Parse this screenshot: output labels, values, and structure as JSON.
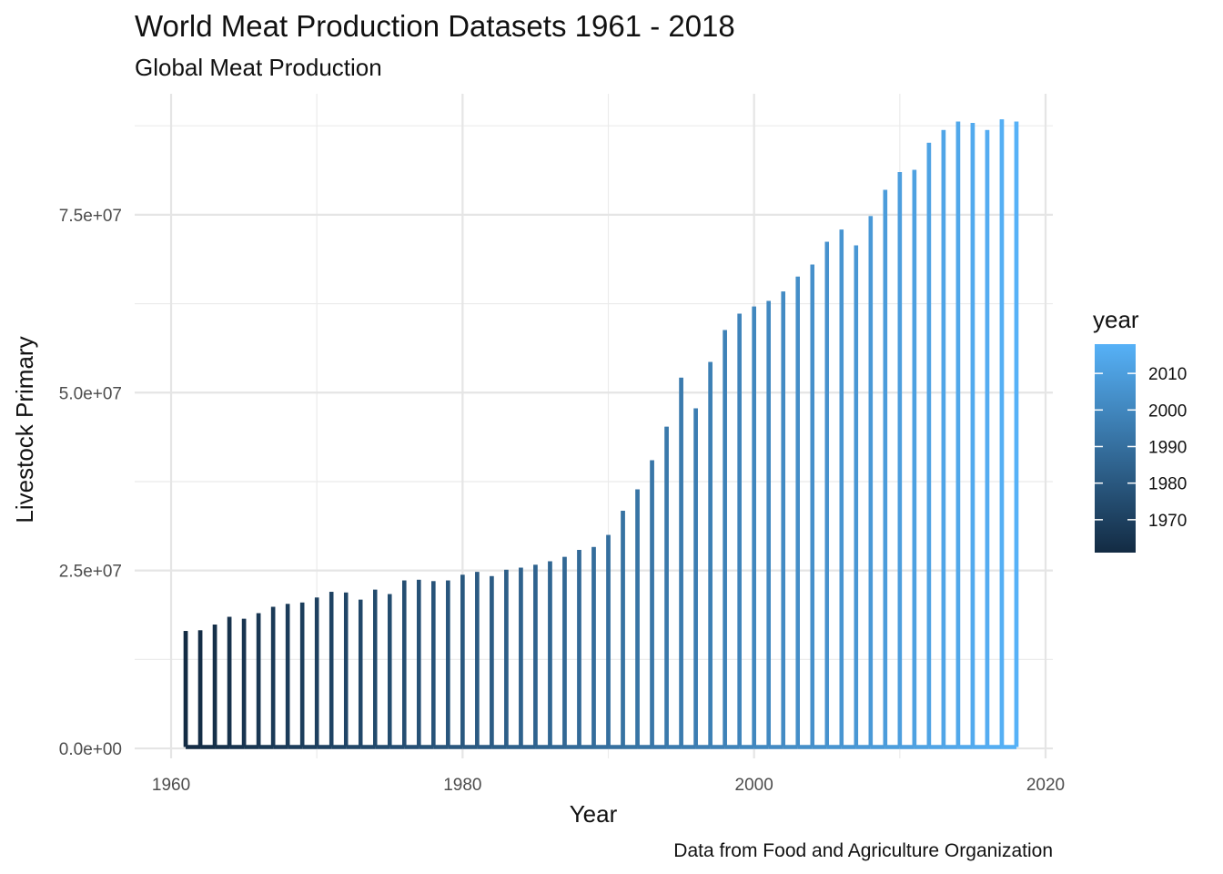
{
  "chart_data": {
    "type": "line",
    "title": "World Meat Production Datasets 1961 - 2018",
    "subtitle": "Global Meat Production",
    "xlabel": "Year",
    "ylabel": "Livestock Primary",
    "caption": "Data from Food and Agriculture Organization",
    "xlim": [
      1957.5,
      2020.5
    ],
    "ylim": [
      -1400000,
      92000000
    ],
    "x_ticks": [
      1960,
      1980,
      2000,
      2020
    ],
    "x_tick_labels": [
      "1960",
      "1980",
      "2000",
      "2020"
    ],
    "y_ticks": [
      0,
      25000000,
      50000000,
      75000000
    ],
    "y_tick_labels": [
      "0.0e+00",
      "2.5e+07",
      "5.0e+07",
      "7.5e+07"
    ],
    "grid": true,
    "color_scale": {
      "variable": "year",
      "low_color": "#132b43",
      "high_color": "#56b1f7",
      "limits": [
        1961,
        2018
      ],
      "legend_ticks": [
        1970,
        1980,
        1990,
        2000,
        2010
      ],
      "legend_tick_labels": [
        "1970",
        "1980",
        "1990",
        "2000",
        "2010"
      ],
      "legend_position": "right"
    },
    "series": [
      {
        "x": [
          1961,
          1962,
          1963,
          1964,
          1965,
          1966,
          1967,
          1968,
          1969,
          1970,
          1971,
          1972,
          1973,
          1974,
          1975,
          1976,
          1977,
          1978,
          1979,
          1980,
          1981,
          1982,
          1983,
          1984,
          1985,
          1986,
          1987,
          1988,
          1989,
          1990,
          1991,
          1992,
          1993,
          1994,
          1995,
          1996,
          1997,
          1998,
          1999,
          2000,
          2001,
          2002,
          2003,
          2004,
          2005,
          2006,
          2007,
          2008,
          2009,
          2010,
          2011,
          2012,
          2013,
          2014,
          2015,
          2016,
          2017,
          2018
        ],
        "peak_values": [
          16500000,
          16600000,
          17400000,
          18500000,
          18200000,
          19000000,
          19900000,
          20300000,
          20500000,
          21200000,
          22000000,
          21900000,
          20900000,
          22300000,
          21700000,
          23600000,
          23700000,
          23500000,
          23600000,
          24400000,
          24800000,
          24200000,
          25100000,
          25400000,
          25800000,
          26300000,
          26900000,
          27900000,
          28300000,
          30000000,
          33400000,
          36400000,
          40500000,
          45200000,
          52100000,
          47800000,
          54300000,
          58800000,
          61100000,
          62100000,
          62900000,
          64200000,
          66300000,
          68000000,
          71200000,
          72900000,
          70700000,
          74800000,
          78500000,
          81000000,
          81300000,
          85100000,
          86900000,
          88100000,
          87900000,
          86900000,
          88400000,
          88100000
        ],
        "base_value": 200000
      }
    ]
  }
}
